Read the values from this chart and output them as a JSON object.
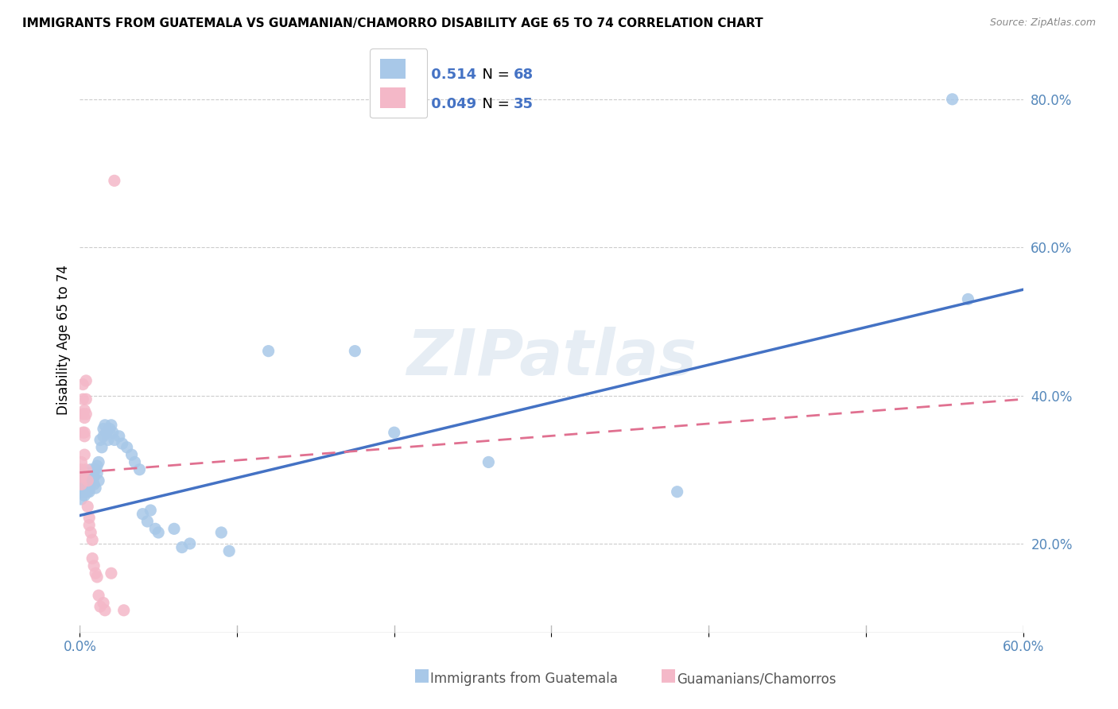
{
  "title": "IMMIGRANTS FROM GUATEMALA VS GUAMANIAN/CHAMORRO DISABILITY AGE 65 TO 74 CORRELATION CHART",
  "source": "Source: ZipAtlas.com",
  "ylabel": "Disability Age 65 to 74",
  "xlim": [
    0.0,
    0.6
  ],
  "ylim": [
    0.08,
    0.87
  ],
  "xtick_positions": [
    0.0,
    0.1,
    0.2,
    0.3,
    0.4,
    0.5,
    0.6
  ],
  "xticklabels_show": {
    "0.0": "0.0%",
    "0.6": "60.0%"
  },
  "yticks_right": [
    0.2,
    0.4,
    0.6,
    0.8
  ],
  "ytick_right_labels": [
    "20.0%",
    "40.0%",
    "60.0%",
    "80.0%"
  ],
  "blue_color": "#a8c8e8",
  "pink_color": "#f4b8c8",
  "blue_line_color": "#4472c4",
  "pink_line_color": "#e07090",
  "watermark": "ZIPatlas",
  "blue_line_x0": 0.0,
  "blue_line_y0": 0.238,
  "blue_line_x1": 0.6,
  "blue_line_y1": 0.543,
  "pink_line_x0": 0.0,
  "pink_line_y0": 0.296,
  "pink_line_x1": 0.6,
  "pink_line_y1": 0.395,
  "blue_dots": [
    [
      0.001,
      0.285
    ],
    [
      0.001,
      0.275
    ],
    [
      0.001,
      0.26
    ],
    [
      0.002,
      0.29
    ],
    [
      0.002,
      0.28
    ],
    [
      0.002,
      0.27
    ],
    [
      0.003,
      0.285
    ],
    [
      0.003,
      0.275
    ],
    [
      0.003,
      0.265
    ],
    [
      0.003,
      0.295
    ],
    [
      0.004,
      0.28
    ],
    [
      0.004,
      0.295
    ],
    [
      0.004,
      0.27
    ],
    [
      0.004,
      0.285
    ],
    [
      0.005,
      0.29
    ],
    [
      0.005,
      0.27
    ],
    [
      0.005,
      0.285
    ],
    [
      0.005,
      0.275
    ],
    [
      0.006,
      0.295
    ],
    [
      0.006,
      0.285
    ],
    [
      0.006,
      0.27
    ],
    [
      0.007,
      0.29
    ],
    [
      0.007,
      0.28
    ],
    [
      0.007,
      0.3
    ],
    [
      0.008,
      0.285
    ],
    [
      0.008,
      0.295
    ],
    [
      0.009,
      0.28
    ],
    [
      0.009,
      0.29
    ],
    [
      0.01,
      0.3
    ],
    [
      0.01,
      0.275
    ],
    [
      0.011,
      0.295
    ],
    [
      0.011,
      0.305
    ],
    [
      0.012,
      0.285
    ],
    [
      0.012,
      0.31
    ],
    [
      0.013,
      0.34
    ],
    [
      0.014,
      0.33
    ],
    [
      0.015,
      0.355
    ],
    [
      0.015,
      0.345
    ],
    [
      0.016,
      0.36
    ],
    [
      0.017,
      0.35
    ],
    [
      0.018,
      0.34
    ],
    [
      0.019,
      0.355
    ],
    [
      0.02,
      0.36
    ],
    [
      0.021,
      0.35
    ],
    [
      0.022,
      0.34
    ],
    [
      0.025,
      0.345
    ],
    [
      0.027,
      0.335
    ],
    [
      0.03,
      0.33
    ],
    [
      0.033,
      0.32
    ],
    [
      0.035,
      0.31
    ],
    [
      0.038,
      0.3
    ],
    [
      0.04,
      0.24
    ],
    [
      0.043,
      0.23
    ],
    [
      0.045,
      0.245
    ],
    [
      0.048,
      0.22
    ],
    [
      0.05,
      0.215
    ],
    [
      0.06,
      0.22
    ],
    [
      0.065,
      0.195
    ],
    [
      0.07,
      0.2
    ],
    [
      0.09,
      0.215
    ],
    [
      0.095,
      0.19
    ],
    [
      0.12,
      0.46
    ],
    [
      0.175,
      0.46
    ],
    [
      0.2,
      0.35
    ],
    [
      0.26,
      0.31
    ],
    [
      0.38,
      0.27
    ],
    [
      0.555,
      0.8
    ],
    [
      0.565,
      0.53
    ]
  ],
  "pink_dots": [
    [
      0.001,
      0.3
    ],
    [
      0.001,
      0.31
    ],
    [
      0.001,
      0.29
    ],
    [
      0.001,
      0.28
    ],
    [
      0.002,
      0.295
    ],
    [
      0.002,
      0.35
    ],
    [
      0.002,
      0.375
    ],
    [
      0.002,
      0.395
    ],
    [
      0.002,
      0.415
    ],
    [
      0.003,
      0.38
    ],
    [
      0.003,
      0.35
    ],
    [
      0.003,
      0.32
    ],
    [
      0.003,
      0.37
    ],
    [
      0.003,
      0.345
    ],
    [
      0.004,
      0.395
    ],
    [
      0.004,
      0.375
    ],
    [
      0.004,
      0.42
    ],
    [
      0.004,
      0.3
    ],
    [
      0.005,
      0.285
    ],
    [
      0.005,
      0.25
    ],
    [
      0.006,
      0.235
    ],
    [
      0.006,
      0.225
    ],
    [
      0.007,
      0.215
    ],
    [
      0.008,
      0.205
    ],
    [
      0.008,
      0.18
    ],
    [
      0.009,
      0.17
    ],
    [
      0.01,
      0.16
    ],
    [
      0.011,
      0.155
    ],
    [
      0.012,
      0.13
    ],
    [
      0.013,
      0.115
    ],
    [
      0.015,
      0.12
    ],
    [
      0.016,
      0.11
    ],
    [
      0.02,
      0.16
    ],
    [
      0.022,
      0.69
    ],
    [
      0.028,
      0.11
    ]
  ]
}
